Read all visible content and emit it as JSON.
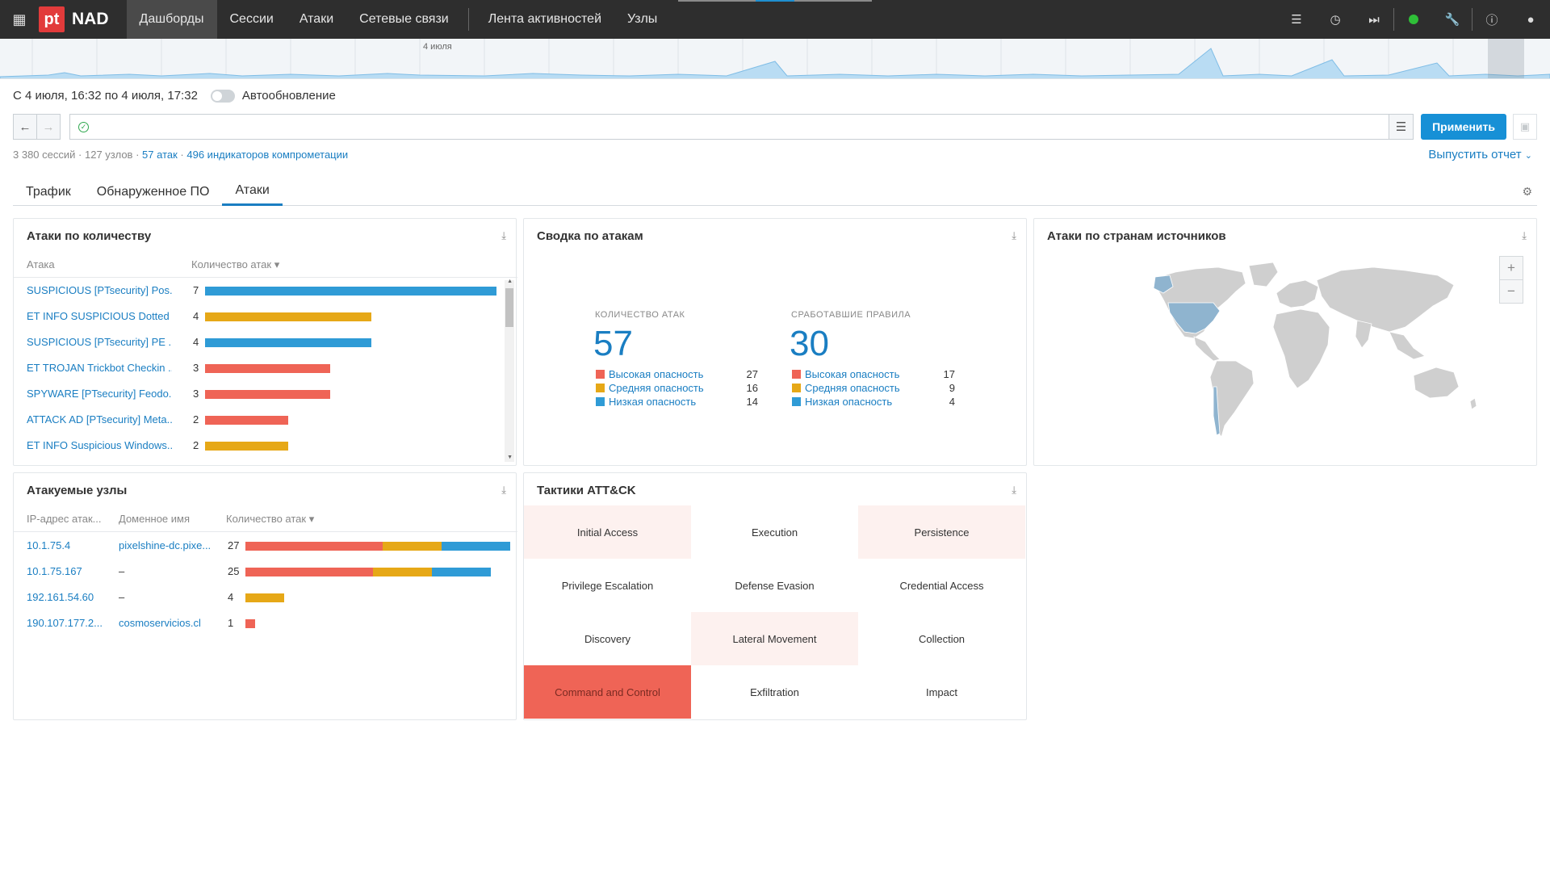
{
  "app": {
    "logo_mark": "pt",
    "name": "NAD"
  },
  "nav": {
    "dashboards": "Дашборды",
    "sessions": "Сессии",
    "attacks": "Атаки",
    "network": "Сетевые связи",
    "activity": "Лента активностей",
    "nodes": "Узлы"
  },
  "timeline": {
    "day_label": "4 июля"
  },
  "range": {
    "text": "С 4 июля, 16:32 по 4 июля, 17:32",
    "autoupdate_label": "Автообновление"
  },
  "filter": {
    "apply_label": "Применить"
  },
  "stats": {
    "sessions": "3 380 сессий",
    "nodes": "127 узлов",
    "attacks": "57 атак",
    "indicators": "496 индикаторов компрометации"
  },
  "report_label": "Выпустить отчет",
  "tabs": [
    "Трафик",
    "Обнаруженное ПО",
    "Атаки"
  ],
  "colors": {
    "high": "#ef6456",
    "medium": "#e6a817",
    "low": "#2f9bd6",
    "accent": "#1a7ec2"
  },
  "attacks_by_count": {
    "title": "Атаки по количеству",
    "col_attack": "Атака",
    "col_count": "Количество атак",
    "rows": [
      {
        "name": "SUSPICIOUS [PTsecurity] Pos...",
        "count": 7,
        "severity": "low"
      },
      {
        "name": "ET INFO SUSPICIOUS Dotted ...",
        "count": 4,
        "severity": "medium"
      },
      {
        "name": "SUSPICIOUS [PTsecurity] PE ...",
        "count": 4,
        "severity": "low"
      },
      {
        "name": "ET TROJAN Trickbot Checkin ...",
        "count": 3,
        "severity": "high"
      },
      {
        "name": "SPYWARE [PTsecurity] Feodo...",
        "count": 3,
        "severity": "high"
      },
      {
        "name": "ATTACK AD [PTsecurity] Meta...",
        "count": 2,
        "severity": "high"
      },
      {
        "name": "ET INFO Suspicious Windows...",
        "count": 2,
        "severity": "medium"
      }
    ]
  },
  "summary": {
    "title": "Сводка по атакам",
    "attacks_caption": "КОЛИЧЕСТВО АТАК",
    "attacks_total": "57",
    "rules_caption": "СРАБОТАВШИЕ ПРАВИЛА",
    "rules_total": "30",
    "high_label": "Высокая опасность",
    "medium_label": "Средняя опасность",
    "low_label": "Низкая опасность",
    "attacks": {
      "high": "27",
      "medium": "16",
      "low": "14"
    },
    "rules": {
      "high": "17",
      "medium": "9",
      "low": "4"
    }
  },
  "countries": {
    "title": "Атаки по странам источников",
    "zoom_in": "+",
    "zoom_out": "−"
  },
  "nodes": {
    "title": "Атакуемые узлы",
    "col_ip": "IP-адрес атак...",
    "col_domain": "Доменное имя",
    "col_count": "Количество атак",
    "rows": [
      {
        "ip": "10.1.75.4",
        "domain": "pixelshine-dc.pixe...",
        "count": 27,
        "high": 14,
        "medium": 6,
        "low": 7
      },
      {
        "ip": "10.1.75.167",
        "domain": "–",
        "count": 25,
        "high": 13,
        "medium": 6,
        "low": 6
      },
      {
        "ip": "192.161.54.60",
        "domain": "–",
        "count": 4,
        "high": 0,
        "medium": 4,
        "low": 0
      },
      {
        "ip": "190.107.177.2...",
        "domain": "cosmoservicios.cl",
        "count": 1,
        "high": 1,
        "medium": 0,
        "low": 0
      }
    ]
  },
  "tactics": {
    "title": "Тактики ATT&CK",
    "items": [
      {
        "label": "Initial Access",
        "level": 1
      },
      {
        "label": "Execution",
        "level": 0
      },
      {
        "label": "Persistence",
        "level": 1
      },
      {
        "label": "Privilege Escalation",
        "level": 0
      },
      {
        "label": "Defense Evasion",
        "level": 0
      },
      {
        "label": "Credential Access",
        "level": 0
      },
      {
        "label": "Discovery",
        "level": 0
      },
      {
        "label": "Lateral Movement",
        "level": 1
      },
      {
        "label": "Collection",
        "level": 0
      },
      {
        "label": "Command and Control",
        "level": 3
      },
      {
        "label": "Exfiltration",
        "level": 0
      },
      {
        "label": "Impact",
        "level": 0
      }
    ]
  }
}
